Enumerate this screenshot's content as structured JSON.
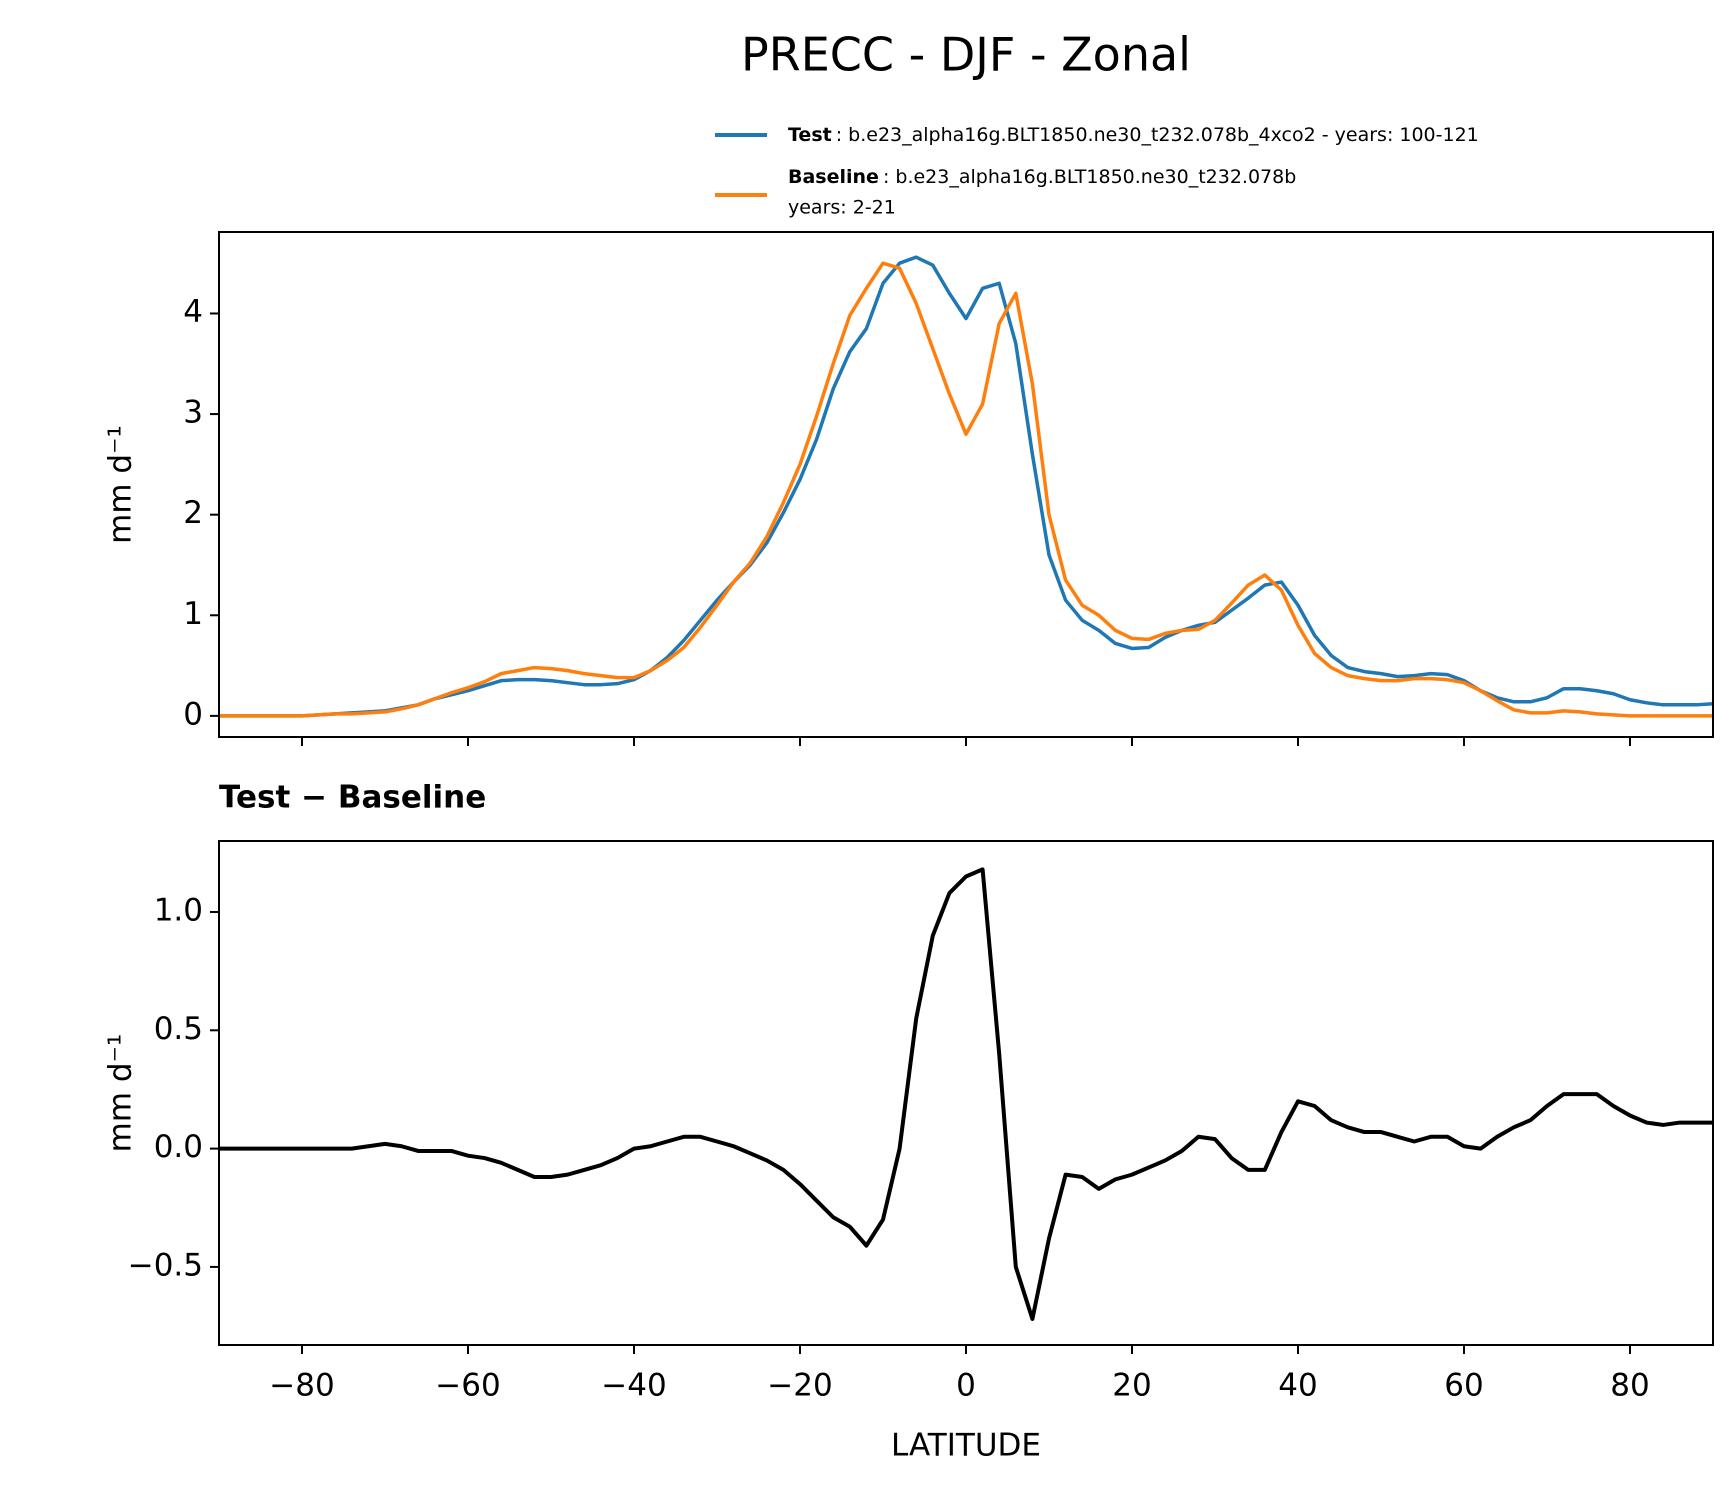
{
  "title": "PRECC - DJF - Zonal",
  "chart_data": [
    {
      "type": "line",
      "ylabel": "mm d⁻¹",
      "x": [
        -90,
        -88,
        -86,
        -84,
        -82,
        -80,
        -78,
        -76,
        -74,
        -72,
        -70,
        -68,
        -66,
        -64,
        -62,
        -60,
        -58,
        -56,
        -54,
        -52,
        -50,
        -48,
        -46,
        -44,
        -42,
        -40,
        -38,
        -36,
        -34,
        -32,
        -30,
        -28,
        -26,
        -24,
        -22,
        -20,
        -18,
        -16,
        -14,
        -12,
        -10,
        -8,
        -6,
        -4,
        -2,
        0,
        2,
        4,
        6,
        8,
        10,
        12,
        14,
        16,
        18,
        20,
        22,
        24,
        26,
        28,
        30,
        32,
        34,
        36,
        38,
        40,
        42,
        44,
        46,
        48,
        50,
        52,
        54,
        56,
        58,
        60,
        62,
        64,
        66,
        68,
        70,
        72,
        74,
        76,
        78,
        80,
        82,
        84,
        86,
        88,
        90
      ],
      "series": [
        {
          "name": "Test",
          "label": ": b.e23_alpha16g.BLT1850.ne30_t232.078b_4xco2 - years: 100-121",
          "color": "#1f77b4",
          "values": [
            0,
            0,
            0,
            0,
            0,
            0,
            0.01,
            0.02,
            0.03,
            0.04,
            0.05,
            0.08,
            0.11,
            0.17,
            0.21,
            0.25,
            0.3,
            0.35,
            0.36,
            0.36,
            0.35,
            0.33,
            0.31,
            0.31,
            0.32,
            0.36,
            0.45,
            0.58,
            0.75,
            0.95,
            1.15,
            1.33,
            1.5,
            1.72,
            2.02,
            2.35,
            2.75,
            3.25,
            3.62,
            3.85,
            4.3,
            4.5,
            4.56,
            4.48,
            4.2,
            3.95,
            4.25,
            4.3,
            3.7,
            2.6,
            1.6,
            1.15,
            0.95,
            0.85,
            0.72,
            0.67,
            0.68,
            0.78,
            0.85,
            0.9,
            0.93,
            1.05,
            1.17,
            1.3,
            1.33,
            1.1,
            0.8,
            0.6,
            0.48,
            0.44,
            0.42,
            0.39,
            0.4,
            0.42,
            0.41,
            0.35,
            0.25,
            0.18,
            0.14,
            0.14,
            0.18,
            0.27,
            0.27,
            0.25,
            0.22,
            0.16,
            0.13,
            0.11,
            0.11,
            0.11,
            0.12
          ]
        },
        {
          "name": "Baseline",
          "label": ": b.e23_alpha16g.BLT1850.ne30_t232.078b",
          "label2": "years: 2-21",
          "color": "#ff7f0e",
          "values": [
            0,
            0,
            0,
            0,
            0,
            0,
            0.01,
            0.02,
            0.02,
            0.03,
            0.04,
            0.07,
            0.11,
            0.17,
            0.23,
            0.28,
            0.34,
            0.42,
            0.45,
            0.48,
            0.47,
            0.45,
            0.42,
            0.4,
            0.38,
            0.38,
            0.45,
            0.55,
            0.68,
            0.88,
            1.1,
            1.33,
            1.52,
            1.78,
            2.12,
            2.5,
            2.98,
            3.5,
            3.98,
            4.25,
            4.5,
            4.45,
            4.1,
            3.65,
            3.2,
            2.8,
            3.1,
            3.9,
            4.2,
            3.3,
            2.0,
            1.35,
            1.1,
            1.0,
            0.85,
            0.77,
            0.76,
            0.82,
            0.85,
            0.86,
            0.95,
            1.12,
            1.3,
            1.4,
            1.25,
            0.9,
            0.62,
            0.48,
            0.4,
            0.37,
            0.35,
            0.35,
            0.37,
            0.37,
            0.36,
            0.33,
            0.25,
            0.15,
            0.06,
            0.03,
            0.03,
            0.05,
            0.04,
            0.02,
            0.01,
            0,
            0,
            0,
            0,
            0,
            0
          ]
        }
      ],
      "xlim": [
        -90,
        90
      ],
      "xticks": [
        -80,
        -60,
        -40,
        -20,
        0,
        20,
        40,
        60,
        80
      ],
      "xtick_labels": false,
      "ylim": [
        -0.21,
        4.81
      ],
      "yticks": [
        0,
        1,
        2,
        3,
        4
      ],
      "legend": "top right"
    },
    {
      "type": "line",
      "title": "Test − Baseline",
      "ylabel": "mm d⁻¹",
      "xlabel": "LATITUDE",
      "x": [
        -90,
        -88,
        -86,
        -84,
        -82,
        -80,
        -78,
        -76,
        -74,
        -72,
        -70,
        -68,
        -66,
        -64,
        -62,
        -60,
        -58,
        -56,
        -54,
        -52,
        -50,
        -48,
        -46,
        -44,
        -42,
        -40,
        -38,
        -36,
        -34,
        -32,
        -30,
        -28,
        -26,
        -24,
        -22,
        -20,
        -18,
        -16,
        -14,
        -12,
        -10,
        -8,
        -6,
        -4,
        -2,
        0,
        2,
        4,
        6,
        8,
        10,
        12,
        14,
        16,
        18,
        20,
        22,
        24,
        26,
        28,
        30,
        32,
        34,
        36,
        38,
        40,
        42,
        44,
        46,
        48,
        50,
        52,
        54,
        56,
        58,
        60,
        62,
        64,
        66,
        68,
        70,
        72,
        74,
        76,
        78,
        80,
        82,
        84,
        86,
        88,
        90
      ],
      "series": [
        {
          "color": "#000000",
          "values": [
            0,
            0,
            0,
            0,
            0,
            0,
            0,
            0,
            0,
            0.01,
            0.02,
            0.01,
            -0.01,
            -0.01,
            -0.01,
            -0.03,
            -0.04,
            -0.06,
            -0.09,
            -0.12,
            -0.12,
            -0.11,
            -0.09,
            -0.07,
            -0.04,
            0.0,
            0.01,
            0.03,
            0.05,
            0.05,
            0.03,
            0.01,
            -0.02,
            -0.05,
            -0.09,
            -0.15,
            -0.22,
            -0.29,
            -0.33,
            -0.41,
            -0.3,
            0.0,
            0.55,
            0.9,
            1.08,
            1.15,
            1.18,
            0.4,
            -0.5,
            -0.72,
            -0.38,
            -0.11,
            -0.12,
            -0.17,
            -0.13,
            -0.11,
            -0.08,
            -0.05,
            -0.01,
            0.05,
            0.04,
            -0.04,
            -0.09,
            -0.09,
            0.07,
            0.2,
            0.18,
            0.12,
            0.09,
            0.07,
            0.07,
            0.05,
            0.03,
            0.05,
            0.05,
            0.01,
            0.0,
            0.05,
            0.09,
            0.12,
            0.18,
            0.23,
            0.23,
            0.23,
            0.18,
            0.14,
            0.11,
            0.1,
            0.11,
            0.11,
            0.11
          ]
        }
      ],
      "xlim": [
        -90,
        90
      ],
      "xticks": [
        {
          "value": -80,
          "label": "−80"
        },
        {
          "value": -60,
          "label": "−60"
        },
        {
          "value": -40,
          "label": "−40"
        },
        {
          "value": -20,
          "label": "−20"
        },
        0,
        20,
        40,
        60,
        80
      ],
      "ylim": [
        -0.83,
        1.3
      ],
      "yticks": [
        {
          "value": -0.5,
          "label": "−0.5"
        },
        {
          "value": 0,
          "label": "0.0"
        },
        {
          "value": 0.5,
          "label": "0.5"
        },
        {
          "value": 1,
          "label": "1.0"
        }
      ]
    }
  ]
}
